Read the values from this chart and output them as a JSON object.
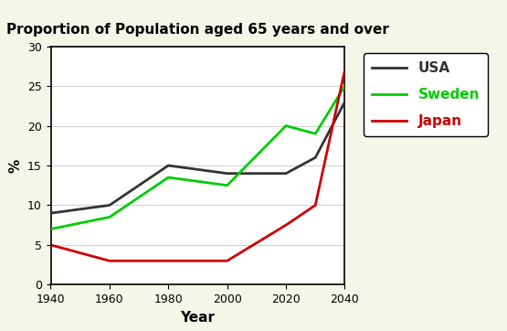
{
  "title": "Proportion of Population aged 65 years and over",
  "xlabel": "Year",
  "ylabel": "%",
  "xlim": [
    1940,
    2040
  ],
  "ylim": [
    0,
    30
  ],
  "xticks": [
    1940,
    1960,
    1980,
    2000,
    2020,
    2040
  ],
  "yticks": [
    0,
    5,
    10,
    15,
    20,
    25,
    30
  ],
  "years": [
    1940,
    1960,
    1980,
    1990,
    2000,
    2020,
    2030,
    2040
  ],
  "usa": [
    9,
    10,
    15,
    14.5,
    14,
    14,
    16,
    23
  ],
  "sweden": [
    7,
    8.5,
    13.5,
    13,
    12.5,
    20,
    19,
    25
  ],
  "japan": [
    5,
    3,
    3,
    3,
    3,
    7.5,
    10,
    27
  ],
  "usa_color": "#333333",
  "sweden_color": "#00cc00",
  "japan_color": "#cc0000",
  "legend_labels": [
    "USA",
    "Sweden",
    "Japan"
  ],
  "plot_bg": "#ffffff",
  "fig_bg": "#f5f5e8",
  "title_fontsize": 11,
  "axis_label_fontsize": 11,
  "tick_fontsize": 9,
  "legend_fontsize": 11,
  "linewidth": 2.0
}
